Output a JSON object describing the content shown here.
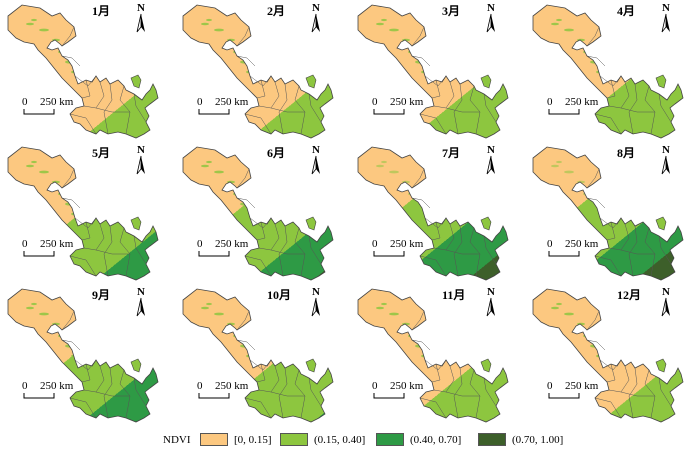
{
  "north_label": "N",
  "scale": {
    "zero": "0",
    "distance": "250 km"
  },
  "months": [
    "1月",
    "2月",
    "3月",
    "4月",
    "5月",
    "6月",
    "7月",
    "8月",
    "9月",
    "10月",
    "11月",
    "12月"
  ],
  "coverage": [
    [
      0.72,
      0.27,
      0.01,
      0.0
    ],
    [
      0.7,
      0.29,
      0.01,
      0.0
    ],
    [
      0.66,
      0.32,
      0.02,
      0.0
    ],
    [
      0.58,
      0.35,
      0.07,
      0.0
    ],
    [
      0.48,
      0.28,
      0.17,
      0.07
    ],
    [
      0.42,
      0.28,
      0.18,
      0.12
    ],
    [
      0.38,
      0.24,
      0.2,
      0.18
    ],
    [
      0.38,
      0.24,
      0.18,
      0.2
    ],
    [
      0.46,
      0.26,
      0.18,
      0.1
    ],
    [
      0.56,
      0.32,
      0.11,
      0.01
    ],
    [
      0.64,
      0.33,
      0.03,
      0.0
    ],
    [
      0.7,
      0.29,
      0.01,
      0.0
    ]
  ],
  "legend": {
    "title": "NDVI",
    "classes": [
      {
        "label": "[0, 0.15]",
        "color": "#fcc880"
      },
      {
        "label": "(0.15, 0.40]",
        "color": "#8dc63f"
      },
      {
        "label": "(0.40, 0.70]",
        "color": "#2e9a45"
      },
      {
        "label": "(0.70, 1.00]",
        "color": "#3d5f2a"
      }
    ]
  }
}
